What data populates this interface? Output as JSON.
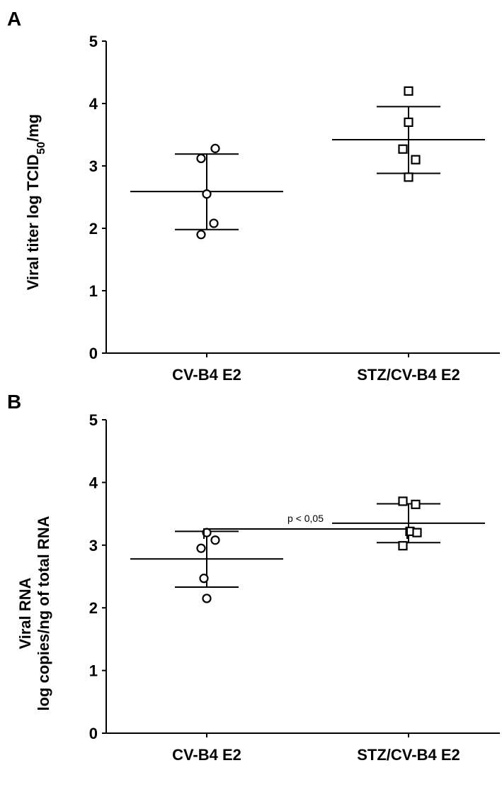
{
  "chart_data": [
    {
      "panel": "A",
      "type": "scatter",
      "ylabel_main": "Viral titer log TCID",
      "ylabel_sub": "50",
      "ylabel_tail": "/mg",
      "ylim": [
        0,
        5
      ],
      "yticks": [
        "0",
        "1",
        "2",
        "3",
        "4",
        "5"
      ],
      "categories": [
        "CV-B4 E2",
        "STZ/CV-B4 E2"
      ],
      "series": [
        {
          "marker": "circle",
          "values": [
            3.28,
            3.12,
            2.55,
            2.08,
            1.9
          ],
          "mean": 2.59,
          "upper": 3.19,
          "lower": 1.98
        },
        {
          "marker": "square",
          "values": [
            4.2,
            3.7,
            3.27,
            3.1,
            2.82
          ],
          "mean": 3.42,
          "upper": 3.95,
          "lower": 2.88
        }
      ]
    },
    {
      "panel": "B",
      "type": "scatter",
      "ylabel_line1": "Viral RNA",
      "ylabel_line2": "log copies/ng of total RNA",
      "ylim": [
        0,
        5
      ],
      "yticks": [
        "0",
        "1",
        "2",
        "3",
        "4",
        "5"
      ],
      "categories": [
        "CV-B4 E2",
        "STZ/CV-B4 E2"
      ],
      "annotation": "p < 0,05",
      "series": [
        {
          "marker": "circle",
          "values": [
            3.2,
            3.08,
            2.95,
            2.47,
            2.15
          ],
          "mean": 2.78,
          "upper": 3.22,
          "lower": 2.33
        },
        {
          "marker": "square",
          "values": [
            3.7,
            3.65,
            3.22,
            3.2,
            2.99
          ],
          "mean": 3.35,
          "upper": 3.66,
          "lower": 3.04
        }
      ]
    }
  ]
}
